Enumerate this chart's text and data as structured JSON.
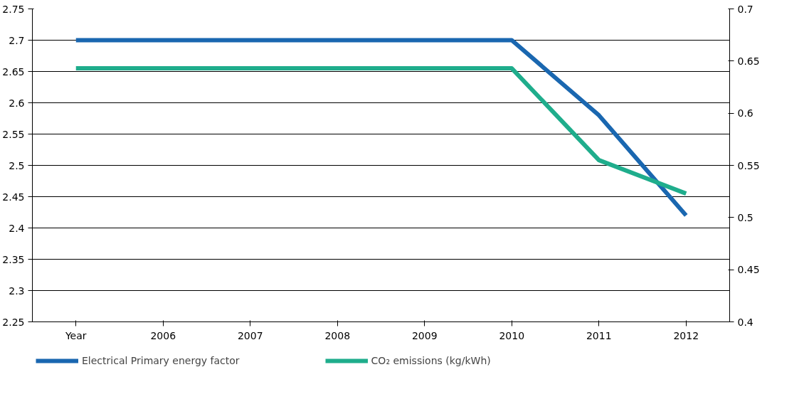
{
  "chart_data": {
    "type": "line",
    "categories": [
      "Year",
      "2006",
      "2007",
      "2008",
      "2009",
      "2010",
      "2011",
      "2012"
    ],
    "series": [
      {
        "name": "Electrical Primary energy factor",
        "color": "#1a67b0",
        "values": [
          2.7,
          2.7,
          2.7,
          2.7,
          2.7,
          2.7,
          2.58,
          2.42
        ]
      },
      {
        "name": "CO₂ emissions (kg/kWh)",
        "color": "#1fad8c",
        "axis": "y2",
        "values": [
          0.643,
          0.643,
          0.643,
          0.643,
          0.643,
          0.643,
          0.555,
          0.523
        ]
      }
    ],
    "ylim": [
      2.25,
      2.75
    ],
    "yticks": [
      2.25,
      2.3,
      2.35,
      2.4,
      2.45,
      2.5,
      2.55,
      2.6,
      2.65,
      2.7,
      2.75
    ],
    "y2lim": [
      0.4,
      0.7
    ],
    "y2ticks": [
      0.4,
      0.45,
      0.5,
      0.55,
      0.6,
      0.65,
      0.7
    ],
    "grid": "y",
    "legend": "bottom",
    "marker": "none",
    "line_style": "solid"
  }
}
